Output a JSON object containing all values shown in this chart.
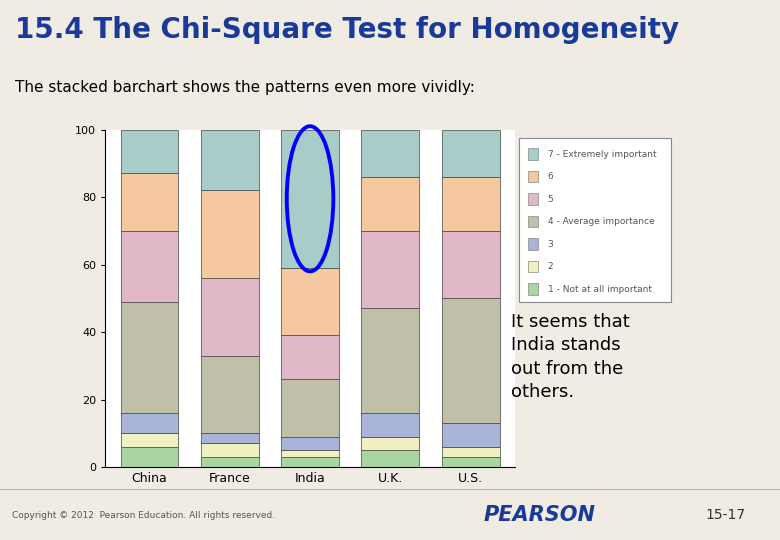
{
  "categories": [
    "China",
    "France",
    "India",
    "U.K.",
    "U.S."
  ],
  "segments_order": [
    "1 - Not at all important",
    "2",
    "3",
    "4 - Average importance",
    "5",
    "6",
    "7 - Extremely important"
  ],
  "segments": {
    "1 - Not at all important": [
      6,
      3,
      3,
      5,
      3
    ],
    "2": [
      4,
      4,
      2,
      4,
      3
    ],
    "3": [
      6,
      3,
      4,
      7,
      7
    ],
    "4 - Average importance": [
      33,
      23,
      17,
      31,
      37
    ],
    "5": [
      21,
      23,
      13,
      23,
      20
    ],
    "6": [
      17,
      26,
      20,
      16,
      16
    ],
    "7 - Extremely important": [
      13,
      18,
      41,
      14,
      14
    ]
  },
  "colors": {
    "1 - Not at all important": "#a8d5a2",
    "2": "#f0f0c0",
    "3": "#aab4d8",
    "4 - Average importance": "#c0c0a8",
    "5": "#e0b8c8",
    "6": "#f5c8a0",
    "7 - Extremely important": "#a8cdc8"
  },
  "title": "15.4 The Chi-Square Test for Homogeneity",
  "subtitle": "The stacked barchart shows the patterns even more vividly:",
  "ylim": [
    0,
    100
  ],
  "yticks": [
    0,
    20,
    40,
    60,
    80,
    100
  ],
  "legend_order": [
    "7 - Extremely important",
    "6",
    "5",
    "4 - Average importance",
    "3",
    "2",
    "1 - Not at all important"
  ],
  "title_color": "#1a3a99",
  "bg_color": "#f0ece4",
  "right_bg_color": "#c8b8d8",
  "bar_edge_color": "#444444",
  "annotation_text": "It seems that\nIndia stands\nout from the\nothers.",
  "footer_left": "Copyright © 2012  Pearson Education. All rights reserved.",
  "footer_right": "15-17",
  "pearson_text": "PEARSON",
  "pearson_color": "#1a3a99"
}
